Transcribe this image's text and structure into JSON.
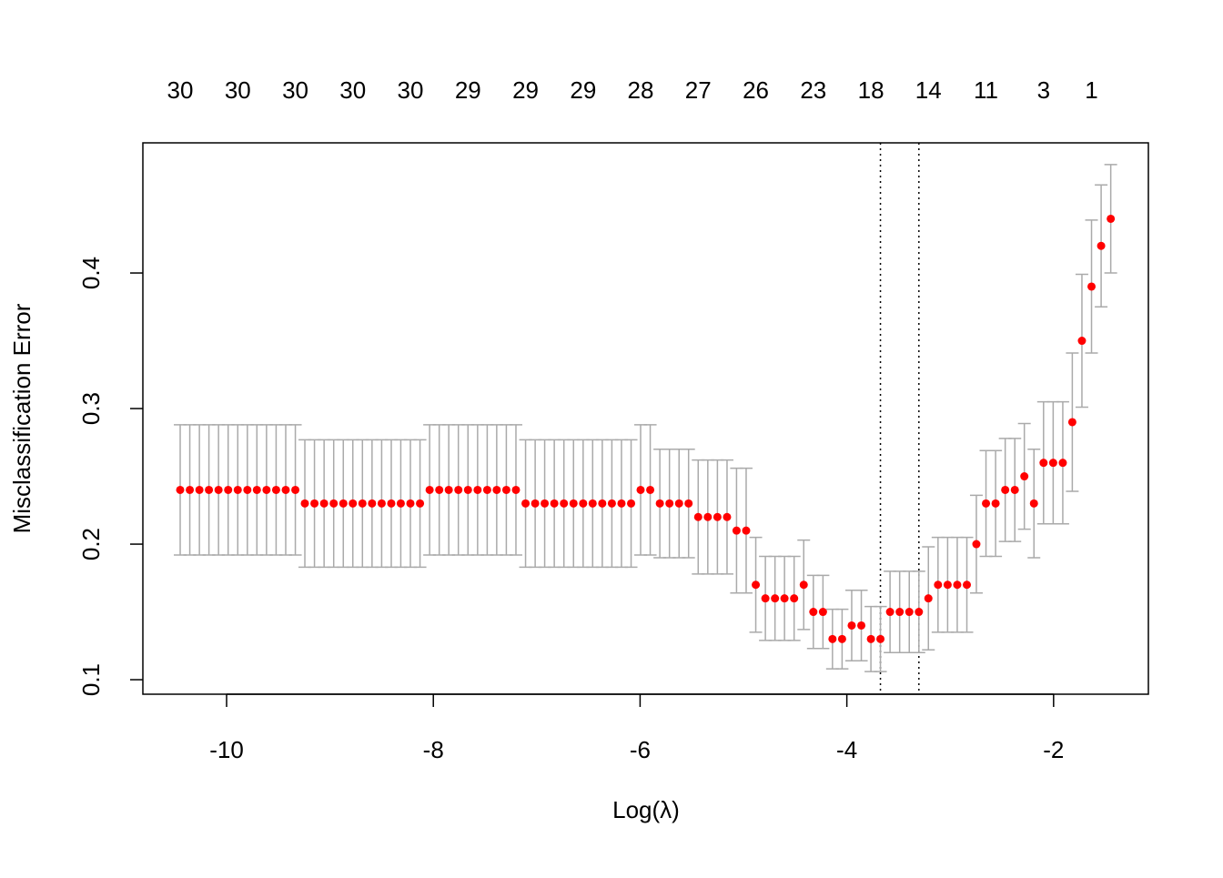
{
  "chart_data": {
    "type": "errorbar",
    "x_label": "Log(λ)",
    "y_label": "Misclassification Error",
    "xlim": [
      -10.81,
      -1.083
    ],
    "ylim": [
      0.0893,
      0.496
    ],
    "xticks": [
      -10,
      -8,
      -6,
      -4,
      -2
    ],
    "yticks": [
      0.1,
      0.2,
      0.3,
      0.4
    ],
    "top_ticks": [
      {
        "value": -10.449,
        "label": "30"
      },
      {
        "value": -9.892,
        "label": "30"
      },
      {
        "value": -9.335,
        "label": "30"
      },
      {
        "value": -8.779,
        "label": "30"
      },
      {
        "value": -8.222,
        "label": "30"
      },
      {
        "value": -7.665,
        "label": "29"
      },
      {
        "value": -7.108,
        "label": "29"
      },
      {
        "value": -6.551,
        "label": "29"
      },
      {
        "value": -5.995,
        "label": "28"
      },
      {
        "value": -5.438,
        "label": "27"
      },
      {
        "value": -4.881,
        "label": "26"
      },
      {
        "value": -4.324,
        "label": "23"
      },
      {
        "value": -3.767,
        "label": "18"
      },
      {
        "value": -3.211,
        "label": "14"
      },
      {
        "value": -2.654,
        "label": "11"
      },
      {
        "value": -2.097,
        "label": "3"
      },
      {
        "value": -1.633,
        "label": "1"
      }
    ],
    "vlines": [
      -3.675,
      -3.303
    ],
    "color": "#ff0000",
    "error_color": "#aaaaaa",
    "x": [
      -10.449,
      -10.356,
      -10.263,
      -10.171,
      -10.078,
      -9.985,
      -9.892,
      -9.799,
      -9.707,
      -9.614,
      -9.521,
      -9.428,
      -9.335,
      -9.243,
      -9.15,
      -9.057,
      -8.964,
      -8.871,
      -8.779,
      -8.686,
      -8.593,
      -8.5,
      -8.407,
      -8.315,
      -8.222,
      -8.129,
      -8.036,
      -7.943,
      -7.851,
      -7.758,
      -7.665,
      -7.572,
      -7.479,
      -7.387,
      -7.294,
      -7.201,
      -7.108,
      -7.015,
      -6.923,
      -6.83,
      -6.737,
      -6.644,
      -6.551,
      -6.459,
      -6.366,
      -6.273,
      -6.18,
      -6.087,
      -5.995,
      -5.902,
      -5.809,
      -5.716,
      -5.623,
      -5.531,
      -5.438,
      -5.345,
      -5.252,
      -5.159,
      -5.067,
      -4.974,
      -4.881,
      -4.788,
      -4.695,
      -4.603,
      -4.51,
      -4.417,
      -4.324,
      -4.231,
      -4.139,
      -4.046,
      -3.953,
      -3.86,
      -3.767,
      -3.675,
      -3.582,
      -3.489,
      -3.396,
      -3.303,
      -3.211,
      -3.118,
      -3.025,
      -2.932,
      -2.839,
      -2.747,
      -2.654,
      -2.561,
      -2.468,
      -2.375,
      -2.283,
      -2.19,
      -2.097,
      -2.004,
      -1.911,
      -1.819,
      -1.726,
      -1.633,
      -1.54,
      -1.447
    ],
    "values": [
      0.24,
      0.24,
      0.24,
      0.24,
      0.24,
      0.24,
      0.24,
      0.24,
      0.24,
      0.24,
      0.24,
      0.24,
      0.24,
      0.23,
      0.23,
      0.23,
      0.23,
      0.23,
      0.23,
      0.23,
      0.23,
      0.23,
      0.23,
      0.23,
      0.23,
      0.23,
      0.24,
      0.24,
      0.24,
      0.24,
      0.24,
      0.24,
      0.24,
      0.24,
      0.24,
      0.24,
      0.23,
      0.23,
      0.23,
      0.23,
      0.23,
      0.23,
      0.23,
      0.23,
      0.23,
      0.23,
      0.23,
      0.23,
      0.24,
      0.24,
      0.23,
      0.23,
      0.23,
      0.23,
      0.22,
      0.22,
      0.22,
      0.22,
      0.21,
      0.21,
      0.17,
      0.16,
      0.16,
      0.16,
      0.16,
      0.17,
      0.15,
      0.15,
      0.13,
      0.13,
      0.14,
      0.14,
      0.13,
      0.13,
      0.15,
      0.15,
      0.15,
      0.15,
      0.16,
      0.17,
      0.17,
      0.17,
      0.17,
      0.2,
      0.23,
      0.23,
      0.24,
      0.24,
      0.25,
      0.23,
      0.26,
      0.26,
      0.26,
      0.29,
      0.35,
      0.39,
      0.42,
      0.44
    ],
    "errors": [
      0.048,
      0.048,
      0.048,
      0.048,
      0.048,
      0.048,
      0.048,
      0.048,
      0.048,
      0.048,
      0.048,
      0.048,
      0.048,
      0.047,
      0.047,
      0.047,
      0.047,
      0.047,
      0.047,
      0.047,
      0.047,
      0.047,
      0.047,
      0.047,
      0.047,
      0.047,
      0.048,
      0.048,
      0.048,
      0.048,
      0.048,
      0.048,
      0.048,
      0.048,
      0.048,
      0.048,
      0.047,
      0.047,
      0.047,
      0.047,
      0.047,
      0.047,
      0.047,
      0.047,
      0.047,
      0.047,
      0.047,
      0.047,
      0.048,
      0.048,
      0.04,
      0.04,
      0.04,
      0.04,
      0.042,
      0.042,
      0.042,
      0.042,
      0.046,
      0.046,
      0.035,
      0.031,
      0.031,
      0.031,
      0.031,
      0.033,
      0.027,
      0.027,
      0.022,
      0.022,
      0.026,
      0.026,
      0.024,
      0.024,
      0.03,
      0.03,
      0.03,
      0.03,
      0.038,
      0.035,
      0.035,
      0.035,
      0.035,
      0.036,
      0.039,
      0.039,
      0.038,
      0.038,
      0.039,
      0.04,
      0.045,
      0.045,
      0.045,
      0.051,
      0.049,
      0.049,
      0.045,
      0.04
    ]
  }
}
